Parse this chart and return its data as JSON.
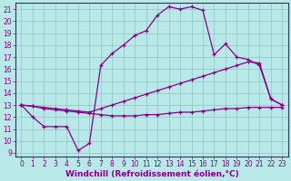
{
  "background_color": "#b8e8e8",
  "grid_color": "#88bbbb",
  "line_color": "#880088",
  "xlim": [
    -0.5,
    23.5
  ],
  "ylim": [
    8.7,
    21.5
  ],
  "xticks": [
    0,
    1,
    2,
    3,
    4,
    5,
    6,
    7,
    8,
    9,
    10,
    11,
    12,
    13,
    14,
    15,
    16,
    17,
    18,
    19,
    20,
    21,
    22,
    23
  ],
  "yticks": [
    9,
    10,
    11,
    12,
    13,
    14,
    15,
    16,
    17,
    18,
    19,
    20,
    21
  ],
  "xlabel": "Windchill (Refroidissement éolien,°C)",
  "line1_x": [
    0,
    1,
    2,
    3,
    4,
    5,
    6,
    7,
    8,
    9,
    10,
    11,
    12,
    13,
    14,
    15,
    16,
    17,
    18,
    19,
    20,
    21,
    22,
    23
  ],
  "line1_y": [
    13.0,
    12.0,
    11.2,
    11.2,
    11.2,
    9.2,
    9.8,
    16.3,
    17.3,
    18.0,
    18.8,
    19.2,
    20.5,
    21.2,
    21.0,
    21.2,
    20.9,
    17.2,
    18.1,
    17.0,
    16.8,
    16.3,
    13.5,
    13.0
  ],
  "line2_x": [
    0,
    1,
    2,
    3,
    4,
    5,
    6,
    7,
    8,
    9,
    10,
    11,
    12,
    13,
    14,
    15,
    16,
    17,
    18,
    19,
    20,
    21,
    22,
    23
  ],
  "line2_y": [
    13.0,
    12.9,
    12.8,
    12.7,
    12.6,
    12.5,
    12.4,
    12.7,
    13.0,
    13.3,
    13.6,
    13.9,
    14.2,
    14.5,
    14.8,
    15.1,
    15.4,
    15.7,
    16.0,
    16.3,
    16.6,
    16.5,
    13.5,
    13.0
  ],
  "line3_x": [
    0,
    1,
    2,
    3,
    4,
    5,
    6,
    7,
    8,
    9,
    10,
    11,
    12,
    13,
    14,
    15,
    16,
    17,
    18,
    19,
    20,
    21,
    22,
    23
  ],
  "line3_y": [
    13.0,
    12.9,
    12.7,
    12.6,
    12.5,
    12.4,
    12.3,
    12.2,
    12.1,
    12.1,
    12.1,
    12.2,
    12.2,
    12.3,
    12.4,
    12.4,
    12.5,
    12.6,
    12.7,
    12.7,
    12.8,
    12.8,
    12.8,
    12.8
  ],
  "tick_fontsize": 5.5,
  "label_fontsize": 6.5
}
